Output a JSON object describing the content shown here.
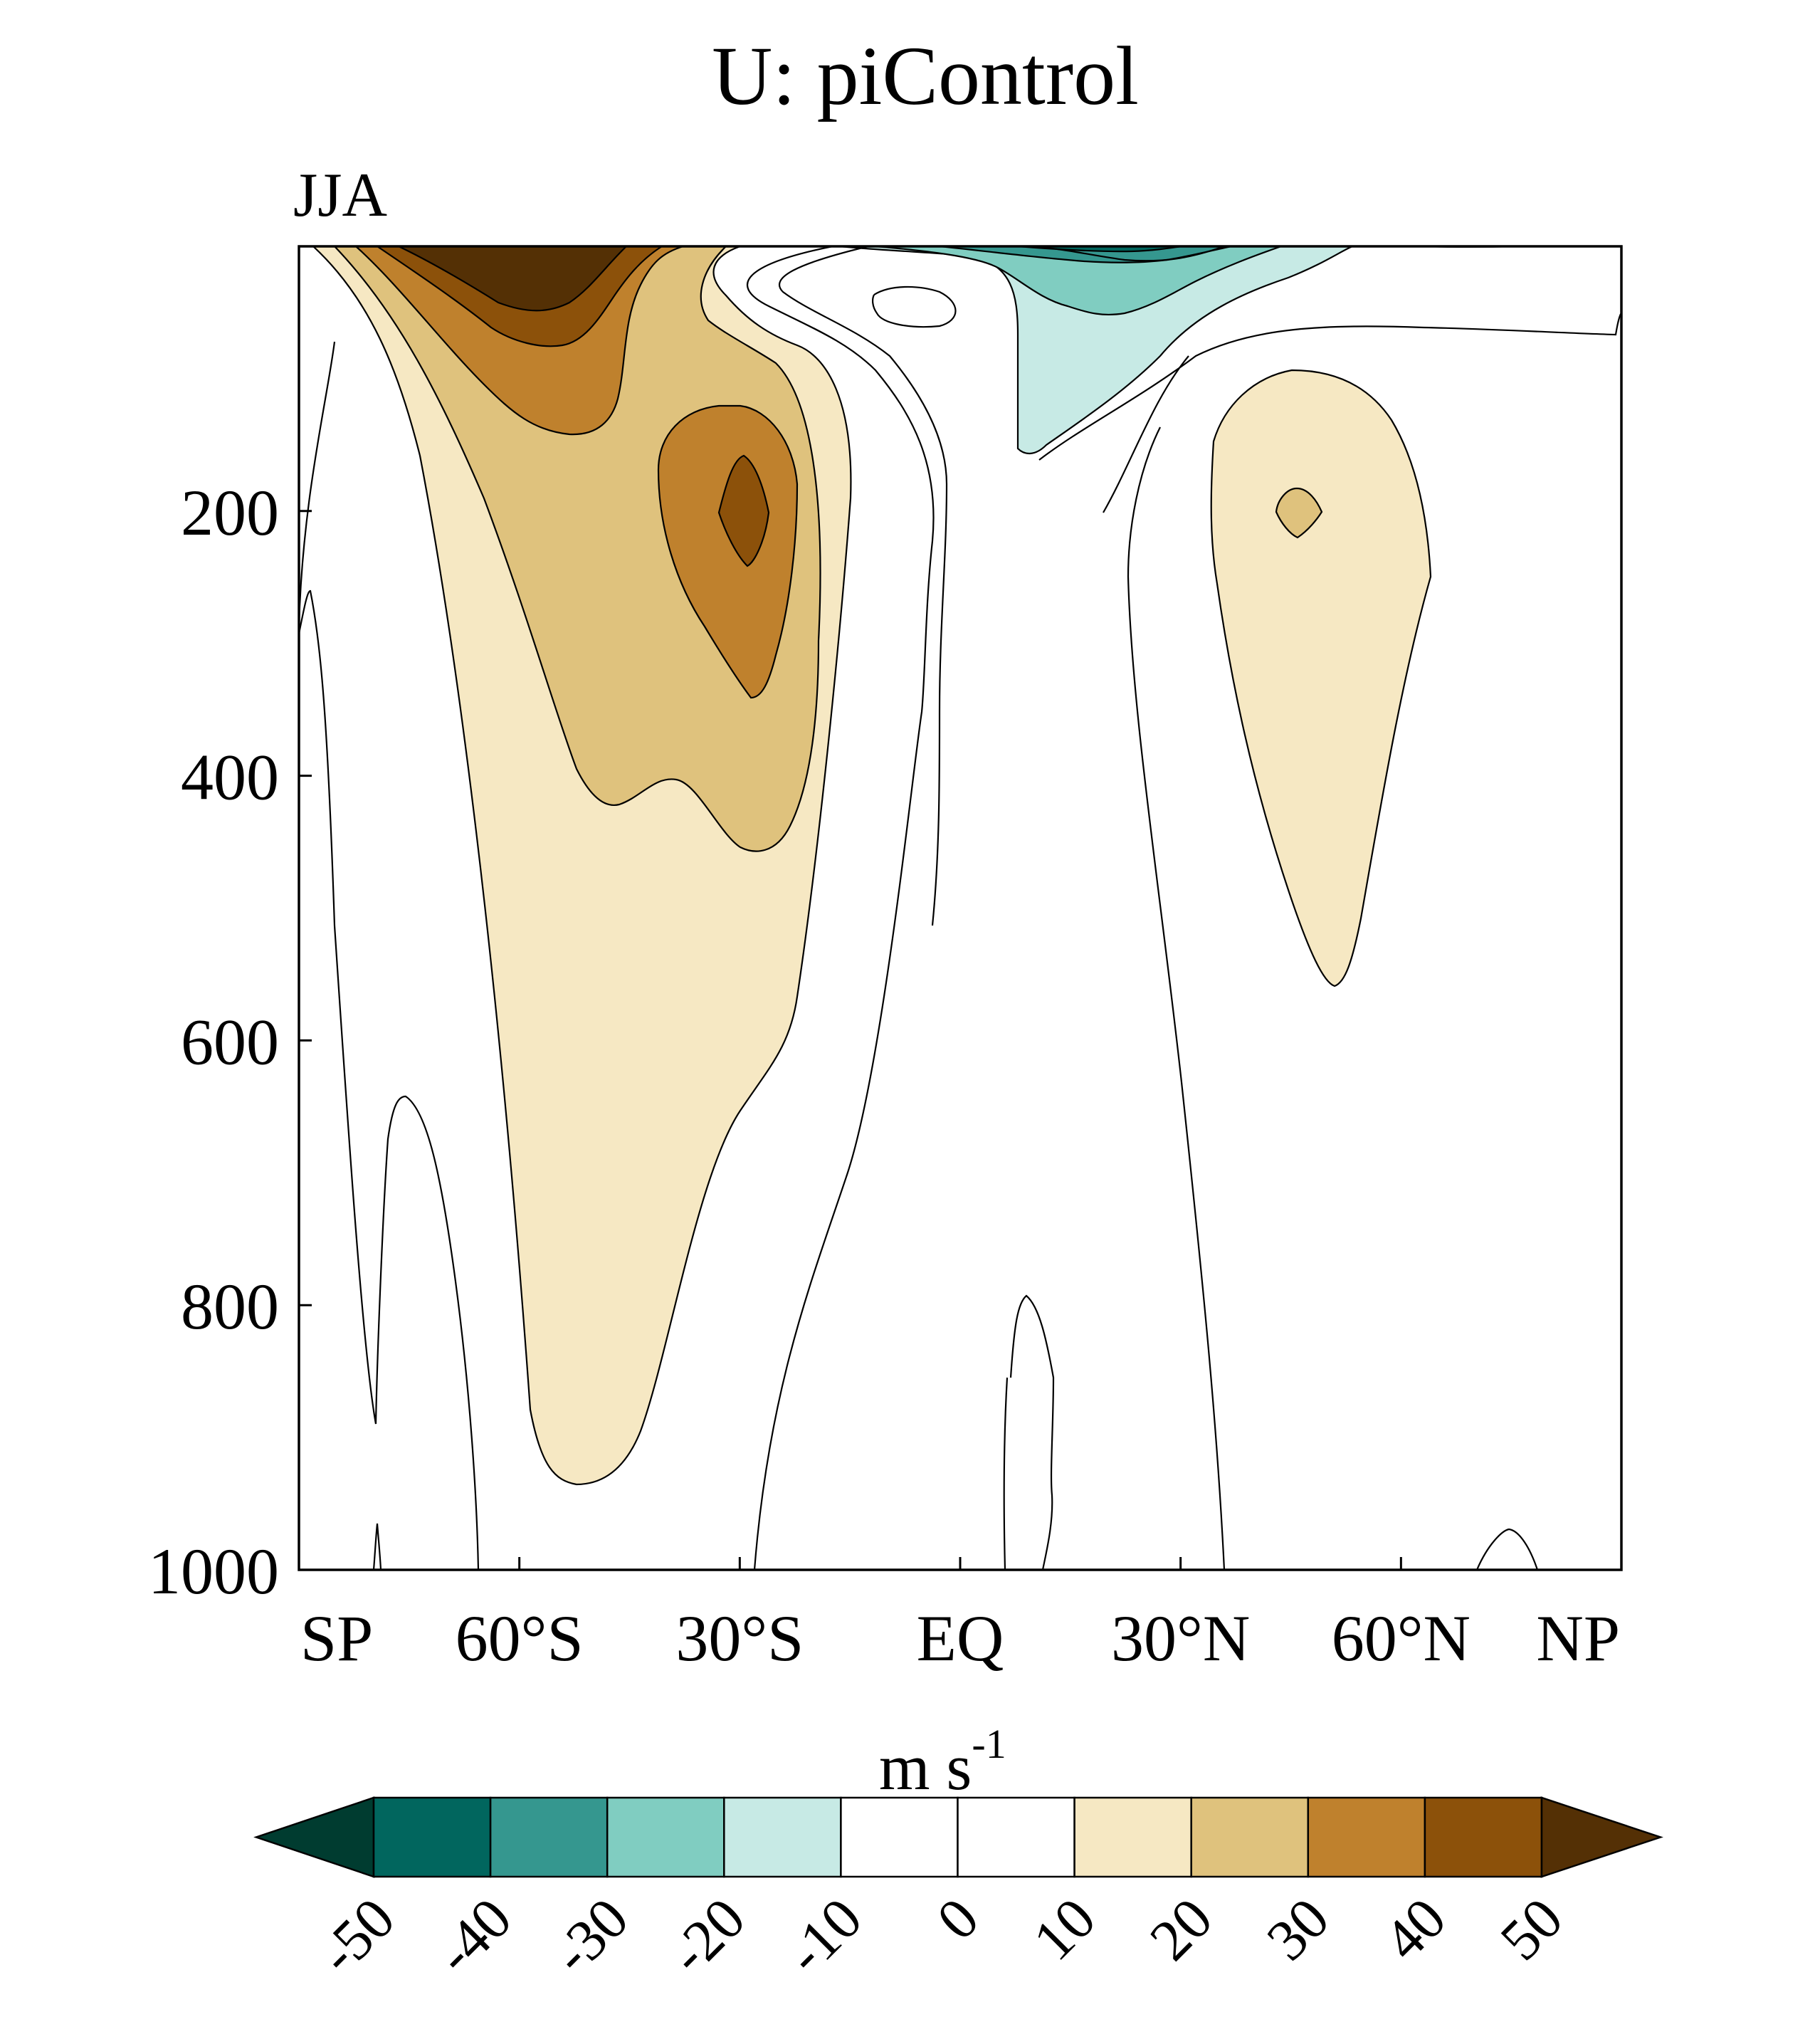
{
  "chart_data": {
    "type": "heatmap",
    "title": "U: piControl",
    "subtitle": "JJA",
    "variable": "U",
    "units_base": "m s",
    "units_exponent": "-1",
    "x_tick_labels": [
      "SP",
      "60°S",
      "30°S",
      "EQ",
      "30°N",
      "60°N",
      "NP"
    ],
    "x_tick_values": [
      -90,
      -60,
      -30,
      0,
      30,
      60,
      90
    ],
    "xlim": [
      -90,
      90
    ],
    "y_tick_labels": [
      "200",
      "400",
      "600",
      "800",
      "1000"
    ],
    "y_tick_values": [
      200,
      400,
      600,
      800,
      1000
    ],
    "ylim": [
      1000,
      0
    ],
    "y_axis_reversed": true,
    "grid": false,
    "colorbar": {
      "position": "bottom",
      "levels": [
        "-50",
        "-40",
        "-30",
        "-20",
        "-10",
        "0",
        "10",
        "20",
        "30",
        "40",
        "50"
      ],
      "colors": [
        "#003c30",
        "#01665e",
        "#35978f",
        "#80cdc1",
        "#c7eae5",
        "#ffffff",
        "#ffffff",
        "#f6e8c3",
        "#dfc27d",
        "#bf812d",
        "#8c510a",
        "#543005"
      ],
      "extend": "both"
    },
    "features": [
      {
        "name": "Southern Hemisphere upper westerlies",
        "lat": -70,
        "pressure": 0,
        "value": ">50"
      },
      {
        "name": "Southern subtropical jet",
        "lat": -30,
        "pressure": 200,
        "value": "40-50"
      },
      {
        "name": "Southern westerlies (surface extent)",
        "lat": -60,
        "pressure": 920,
        "value": "10-20"
      },
      {
        "name": "Northern midlatitude jet",
        "lat": 45,
        "pressure": 200,
        "value": "20-30"
      },
      {
        "name": "Tropical upper easterlies",
        "lat": 15,
        "pressure": 0,
        "value": "-30 to -40"
      },
      {
        "name": "Tropical easterlies",
        "lat": 10,
        "pressure": 100,
        "value": "-10 to -20"
      },
      {
        "name": "Northern westerlies (lower extent)",
        "lat": 50,
        "pressure": 550,
        "value": "10-20"
      }
    ]
  }
}
